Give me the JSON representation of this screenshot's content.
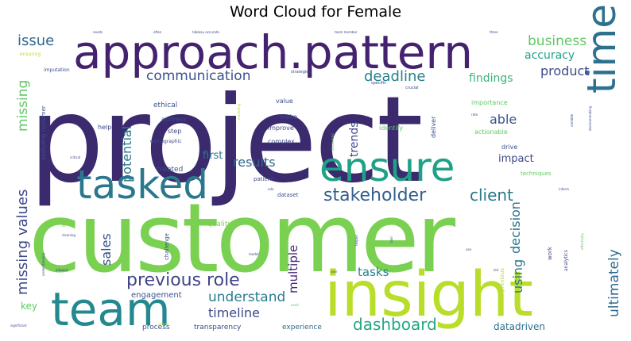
{
  "chart_data": {
    "type": "wordcloud",
    "title": "Word Cloud for Female",
    "words": [
      {
        "text": "project",
        "weight": 100,
        "color": "#3b2a6e"
      },
      {
        "text": "customer",
        "weight": 92,
        "color": "#7ad151"
      },
      {
        "text": "insight",
        "weight": 70,
        "color": "#b8de29"
      },
      {
        "text": "approach.pattern",
        "weight": 62,
        "color": "#45226f"
      },
      {
        "text": "team",
        "weight": 58,
        "color": "#23898e"
      },
      {
        "text": "tasked",
        "weight": 50,
        "color": "#2a788e"
      },
      {
        "text": "ensure",
        "weight": 50,
        "color": "#1fa187"
      },
      {
        "text": "time",
        "weight": 42,
        "color": "#2c728e"
      },
      {
        "text": "stakeholder",
        "weight": 22,
        "color": "#355f8d"
      },
      {
        "text": "client",
        "weight": 20,
        "color": "#2a788e"
      },
      {
        "text": "previous role",
        "weight": 20,
        "color": "#414487"
      },
      {
        "text": "dashboard",
        "weight": 20,
        "color": "#22a884"
      },
      {
        "text": "communication",
        "weight": 17,
        "color": "#3b528b"
      },
      {
        "text": "deadline",
        "weight": 17,
        "color": "#26828e"
      },
      {
        "text": "business",
        "weight": 17,
        "color": "#5ec962"
      },
      {
        "text": "product",
        "weight": 16,
        "color": "#3e4a89"
      },
      {
        "text": "issue",
        "weight": 16,
        "color": "#31688e"
      },
      {
        "text": "missing values",
        "weight": 17,
        "color": "#3e4989"
      },
      {
        "text": "missing",
        "weight": 16,
        "color": "#5ec962"
      },
      {
        "text": "understand",
        "weight": 17,
        "color": "#287c8e"
      },
      {
        "text": "results",
        "weight": 16,
        "color": "#31688e"
      },
      {
        "text": "able",
        "weight": 16,
        "color": "#3b528b"
      },
      {
        "text": "findings",
        "weight": 14,
        "color": "#35b779"
      },
      {
        "text": "accuracy",
        "weight": 13,
        "color": "#20a386"
      },
      {
        "text": "decision",
        "weight": 15,
        "color": "#2c728e"
      },
      {
        "text": "using",
        "weight": 15,
        "color": "#2a788e"
      },
      {
        "text": "ultimately",
        "weight": 17,
        "color": "#306a8e"
      },
      {
        "text": "timeline",
        "weight": 15,
        "color": "#3e4a89"
      },
      {
        "text": "tasks",
        "weight": 14,
        "color": "#26828e"
      },
      {
        "text": "sales",
        "weight": 15,
        "color": "#3b528b"
      },
      {
        "text": "multiple",
        "weight": 15,
        "color": "#482878"
      },
      {
        "text": "potential",
        "weight": 15,
        "color": "#2a788e"
      },
      {
        "text": "trends",
        "weight": 13,
        "color": "#3e4989"
      },
      {
        "text": "impact",
        "weight": 12,
        "color": "#3e4a89"
      },
      {
        "text": "datadriven",
        "weight": 12,
        "color": "#2c728e"
      },
      {
        "text": "first",
        "weight": 12,
        "color": "#2a788e"
      },
      {
        "text": "key",
        "weight": 12,
        "color": "#5ec962"
      },
      {
        "text": "engagement",
        "weight": 10,
        "color": "#3b528b"
      },
      {
        "text": "experience",
        "weight": 9,
        "color": "#31688e"
      },
      {
        "text": "transparency",
        "weight": 9,
        "color": "#3e4a89"
      },
      {
        "text": "process",
        "weight": 8,
        "color": "#3b528b"
      },
      {
        "text": "created",
        "weight": 9,
        "color": "#3b528b"
      },
      {
        "text": "quality",
        "weight": 9,
        "color": "#7ad151"
      },
      {
        "text": "ethical",
        "weight": 8,
        "color": "#3b528b"
      },
      {
        "text": "address",
        "weight": 8,
        "color": "#3e4989"
      },
      {
        "text": "step",
        "weight": 8,
        "color": "#3e4989"
      },
      {
        "text": "help",
        "weight": 8,
        "color": "#3e4989"
      },
      {
        "text": "value",
        "weight": 8,
        "color": "#3b528b"
      },
      {
        "text": "make",
        "weight": 8,
        "color": "#3e4989"
      },
      {
        "text": "improve",
        "weight": 8,
        "color": "#3e4989"
      },
      {
        "text": "complex",
        "weight": 8,
        "color": "#3e4989"
      },
      {
        "text": "importance",
        "weight": 8,
        "color": "#5ec962"
      },
      {
        "text": "actionable",
        "weight": 8,
        "color": "#5ec962"
      },
      {
        "text": "identify",
        "weight": 8,
        "color": "#5ec962"
      },
      {
        "text": "drive",
        "weight": 8,
        "color": "#3b528b"
      },
      {
        "text": "techniques",
        "weight": 7,
        "color": "#5ec962"
      },
      {
        "text": "deliver",
        "weight": 8,
        "color": "#3b528b"
      },
      {
        "text": "dataset",
        "weight": 7,
        "color": "#3e4989"
      },
      {
        "text": "patient",
        "weight": 7,
        "color": "#3e4989"
      },
      {
        "text": "demographic",
        "weight": 6,
        "color": "#3e4989"
      },
      {
        "text": "analyzing customer",
        "weight": 7,
        "color": "#3b528b"
      },
      {
        "text": "challenge",
        "weight": 7,
        "color": "#3b528b"
      },
      {
        "text": "imputation",
        "weight": 6,
        "color": "#3e4989"
      },
      {
        "text": "ensuring",
        "weight": 6,
        "color": "#b8de29"
      },
      {
        "text": "strategies",
        "weight": 5,
        "color": "#3e4989"
      },
      {
        "text": "specific",
        "weight": 5,
        "color": "#3e4989"
      },
      {
        "text": "crucial",
        "weight": 5,
        "color": "#3e4989"
      },
      {
        "text": "previous",
        "weight": 7,
        "color": "#b8de29"
      },
      {
        "text": "work",
        "weight": 7,
        "color": "#3e4989"
      },
      {
        "text": "analytics",
        "weight": 6,
        "color": "#3e4989"
      },
      {
        "text": "needs",
        "weight": 4,
        "color": "#3e4989"
      },
      {
        "text": "often",
        "weight": 4,
        "color": "#3e4989"
      },
      {
        "text": "tableau accurate",
        "weight": 4,
        "color": "#3e4989"
      },
      {
        "text": "team member",
        "weight": 4,
        "color": "#3e4989"
      },
      {
        "text": "three",
        "weight": 4,
        "color": "#3e4989"
      },
      {
        "text": "marketing",
        "weight": 4,
        "color": "#b8de29"
      },
      {
        "text": "discovered",
        "weight": 4,
        "color": "#5ec962"
      },
      {
        "text": "critical",
        "weight": 4,
        "color": "#3e4989"
      },
      {
        "text": "eda",
        "weight": 4,
        "color": "#3e4989"
      },
      {
        "text": "inform",
        "weight": 4,
        "color": "#3e4989"
      },
      {
        "text": "rate",
        "weight": 4,
        "color": "#3e4989"
      },
      {
        "text": "decisionmaking",
        "weight": 4,
        "color": "#3e4989"
      },
      {
        "text": "variable",
        "weight": 4,
        "color": "#3e4989"
      },
      {
        "text": "effectively",
        "weight": 4,
        "color": "#5ec962"
      },
      {
        "text": "cleaning",
        "weight": 4,
        "color": "#3e4989"
      },
      {
        "text": "us",
        "weight": 4,
        "color": "#5ec962"
      },
      {
        "text": "tool",
        "weight": 4,
        "color": "#3e4989"
      },
      {
        "text": "helped",
        "weight": 4,
        "color": "#3e4989"
      },
      {
        "text": "model",
        "weight": 4,
        "color": "#3e4989"
      },
      {
        "text": "use",
        "weight": 4,
        "color": "#3e4989"
      },
      {
        "text": "led",
        "weight": 4,
        "color": "#3e4989"
      },
      {
        "text": "allowed",
        "weight": 4,
        "color": "#3e4989"
      },
      {
        "text": "user",
        "weight": 4,
        "color": "#3e4989"
      },
      {
        "text": "used",
        "weight": 4,
        "color": "#5ec962"
      },
      {
        "text": "understanding",
        "weight": 4,
        "color": "#3e4989"
      },
      {
        "text": "significant",
        "weight": 4,
        "color": "#3e4989"
      },
      {
        "text": "source",
        "weight": 4,
        "color": "#b8de29"
      }
    ]
  }
}
